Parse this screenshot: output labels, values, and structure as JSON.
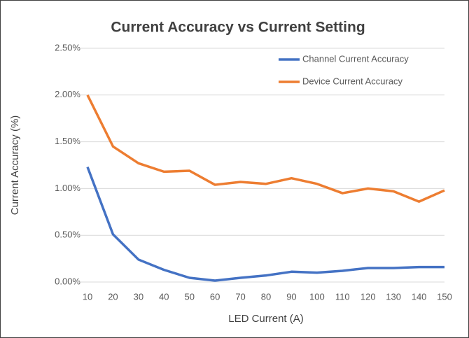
{
  "chart_data": {
    "type": "line",
    "title": "Current Accuracy vs Current Setting",
    "x_label": "LED Current (A)",
    "y_label": "Current Accuracy (%)",
    "x": [
      10,
      20,
      30,
      40,
      50,
      60,
      70,
      80,
      90,
      100,
      110,
      120,
      130,
      140,
      150
    ],
    "xlim": [
      10,
      150
    ],
    "xticks": [
      10,
      20,
      30,
      40,
      50,
      60,
      70,
      80,
      90,
      100,
      110,
      120,
      130,
      140,
      150
    ],
    "ylim": [
      0,
      2.5
    ],
    "yticks": [
      {
        "value": 0,
        "label": "0.00%"
      },
      {
        "value": 0.5,
        "label": "0.50%"
      },
      {
        "value": 1,
        "label": "1.00%"
      },
      {
        "value": 1.5,
        "label": "1.50%"
      },
      {
        "value": 2,
        "label": "2.00%"
      },
      {
        "value": 2.5,
        "label": "2.50%"
      }
    ],
    "grid": true,
    "legend": "top-right",
    "series": [
      {
        "name": "Channel Current Accuracy",
        "color": "#4472c4",
        "values": [
          1.23,
          0.51,
          0.24,
          0.13,
          0.045,
          0.015,
          0.045,
          0.07,
          0.11,
          0.1,
          0.12,
          0.15,
          0.15,
          0.16,
          0.16
        ]
      },
      {
        "name": "Device Current Accuracy",
        "color": "#ed7d31",
        "values": [
          2.0,
          1.45,
          1.27,
          1.18,
          1.19,
          1.04,
          1.07,
          1.05,
          1.11,
          1.05,
          0.95,
          1.0,
          0.97,
          0.86,
          0.98
        ]
      }
    ]
  }
}
